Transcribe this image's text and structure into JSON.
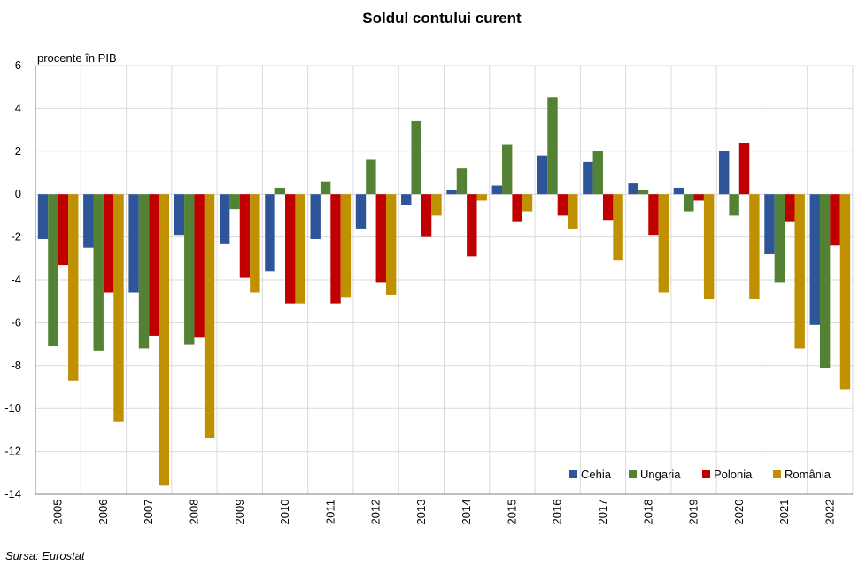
{
  "chart_data": {
    "type": "bar",
    "title": "Soldul contului curent",
    "ylabel": "procente în PIB",
    "xlabel": "",
    "source": "Sursa: Eurostat",
    "categories": [
      "2005",
      "2006",
      "2007",
      "2008",
      "2009",
      "2010",
      "2011",
      "2012",
      "2013",
      "2014",
      "2015",
      "2016",
      "2017",
      "2018",
      "2019",
      "2020",
      "2021",
      "2022"
    ],
    "ylim": [
      -14,
      6
    ],
    "yticks": [
      6,
      4,
      2,
      0,
      -2,
      -4,
      -6,
      -8,
      -10,
      -12,
      -14
    ],
    "grid": true,
    "legend_position": "bottom-right",
    "series": [
      {
        "name": "Cehia",
        "color": "#2e5597",
        "values": [
          -2.1,
          -2.5,
          -4.6,
          -1.9,
          -2.3,
          -3.6,
          -2.1,
          -1.6,
          -0.5,
          0.2,
          0.4,
          1.8,
          1.5,
          0.5,
          0.3,
          2.0,
          -2.8,
          -6.1
        ]
      },
      {
        "name": "Ungaria",
        "color": "#548235",
        "values": [
          -7.1,
          -7.3,
          -7.2,
          -7.0,
          -0.7,
          0.3,
          0.6,
          1.6,
          3.4,
          1.2,
          2.3,
          4.5,
          2.0,
          0.2,
          -0.8,
          -1.0,
          -4.1,
          -8.1
        ]
      },
      {
        "name": "Polonia",
        "color": "#c00000",
        "values": [
          -3.3,
          -4.6,
          -6.6,
          -6.7,
          -3.9,
          -5.1,
          -5.1,
          -4.1,
          -2.0,
          -2.9,
          -1.3,
          -1.0,
          -1.2,
          -1.9,
          -0.3,
          2.4,
          -1.3,
          -2.4
        ]
      },
      {
        "name": "România",
        "color": "#bf9000",
        "values": [
          -8.7,
          -10.6,
          -13.6,
          -11.4,
          -4.6,
          -5.1,
          -4.8,
          -4.7,
          -1.0,
          -0.3,
          -0.8,
          -1.6,
          -3.1,
          -4.6,
          -4.9,
          -4.9,
          -7.2,
          -9.1
        ]
      }
    ]
  }
}
